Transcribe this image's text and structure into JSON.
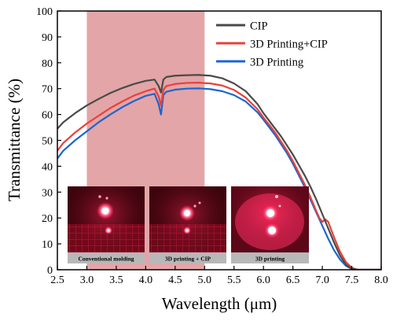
{
  "chart_data": {
    "type": "line",
    "xlabel": "Wavelength (μm)",
    "ylabel": "Transmittance (%)",
    "xlim": [
      2.5,
      8.0
    ],
    "ylim": [
      0,
      100
    ],
    "xticks": [
      "2.5",
      "3.0",
      "3.5",
      "4.0",
      "4.5",
      "5.0",
      "5.5",
      "6.0",
      "6.5",
      "7.0",
      "7.5",
      "8.0"
    ],
    "yticks": [
      "0",
      "10",
      "20",
      "30",
      "40",
      "50",
      "60",
      "70",
      "80",
      "90",
      "100"
    ],
    "grid": false,
    "legend_position": "top-right",
    "highlight_band": {
      "x_start": 3.0,
      "x_end": 5.0,
      "color": "#e3a5a7"
    },
    "series": [
      {
        "name": "CIP",
        "color": "#4a4a4a",
        "x": [
          2.5,
          2.6,
          2.8,
          3.0,
          3.2,
          3.4,
          3.6,
          3.8,
          4.0,
          4.15,
          4.22,
          4.26,
          4.3,
          4.35,
          4.5,
          4.7,
          4.9,
          5.1,
          5.3,
          5.5,
          5.7,
          5.9,
          6.0,
          6.1,
          6.2,
          6.3,
          6.4,
          6.5,
          6.6,
          6.7,
          6.8,
          6.9,
          7.0,
          7.1,
          7.2,
          7.3,
          7.4,
          7.5,
          7.6,
          7.7,
          8.0
        ],
        "y": [
          54.5,
          57,
          60.5,
          63.5,
          66,
          68.3,
          70.2,
          71.8,
          73,
          73.5,
          71,
          68.5,
          73.5,
          74.5,
          75,
          75.2,
          75.3,
          75,
          74,
          72,
          69,
          64,
          60.5,
          57.5,
          54.5,
          51.5,
          48,
          44.5,
          40.5,
          36.5,
          32,
          27,
          21.5,
          16,
          10.5,
          5.5,
          2,
          0.3,
          0,
          0,
          0
        ]
      },
      {
        "name": "3D Printing+CIP",
        "color": "#e8413a",
        "x": [
          2.5,
          2.6,
          2.8,
          3.0,
          3.2,
          3.4,
          3.6,
          3.8,
          4.0,
          4.15,
          4.22,
          4.26,
          4.3,
          4.35,
          4.5,
          4.7,
          4.9,
          5.1,
          5.3,
          5.5,
          5.7,
          5.9,
          6.0,
          6.1,
          6.2,
          6.3,
          6.4,
          6.5,
          6.6,
          6.7,
          6.8,
          6.9,
          6.95,
          7.0,
          7.05,
          7.1,
          7.2,
          7.3,
          7.4,
          7.5,
          7.6,
          7.7,
          8.0
        ],
        "y": [
          46,
          49,
          53,
          56.5,
          59.5,
          62.5,
          65,
          67.3,
          69,
          70,
          67,
          63.5,
          69.5,
          71,
          71.8,
          72.2,
          72.3,
          72,
          71.2,
          69.5,
          66.5,
          62,
          58.8,
          56,
          53,
          49.5,
          46,
          42,
          37.5,
          33,
          28,
          22.5,
          20,
          18.5,
          19.5,
          18.5,
          12.5,
          7,
          3,
          0.8,
          0,
          0,
          0
        ]
      },
      {
        "name": "3D Printing",
        "color": "#1c65d1",
        "x": [
          2.5,
          2.6,
          2.8,
          3.0,
          3.2,
          3.4,
          3.6,
          3.8,
          4.0,
          4.15,
          4.22,
          4.26,
          4.3,
          4.35,
          4.5,
          4.7,
          4.9,
          5.1,
          5.3,
          5.5,
          5.7,
          5.9,
          6.0,
          6.1,
          6.2,
          6.3,
          6.4,
          6.5,
          6.6,
          6.7,
          6.8,
          6.9,
          7.0,
          7.1,
          7.2,
          7.3,
          7.4,
          7.5,
          7.6,
          7.7,
          8.0
        ],
        "y": [
          43,
          46,
          50,
          53.5,
          57,
          60,
          62.8,
          65.2,
          67.2,
          68,
          64,
          60,
          67.5,
          68.8,
          69.6,
          70,
          70.1,
          69.8,
          69,
          67.5,
          65,
          60.8,
          58,
          55,
          52,
          48.5,
          45,
          41,
          36.5,
          32,
          27,
          22,
          17,
          12,
          7.5,
          4,
          1.5,
          0.3,
          0,
          0,
          0
        ]
      }
    ],
    "inset_images": [
      {
        "caption": "Conventional molding"
      },
      {
        "caption": "3D printing + CIP"
      },
      {
        "caption": "3D printing"
      }
    ]
  }
}
